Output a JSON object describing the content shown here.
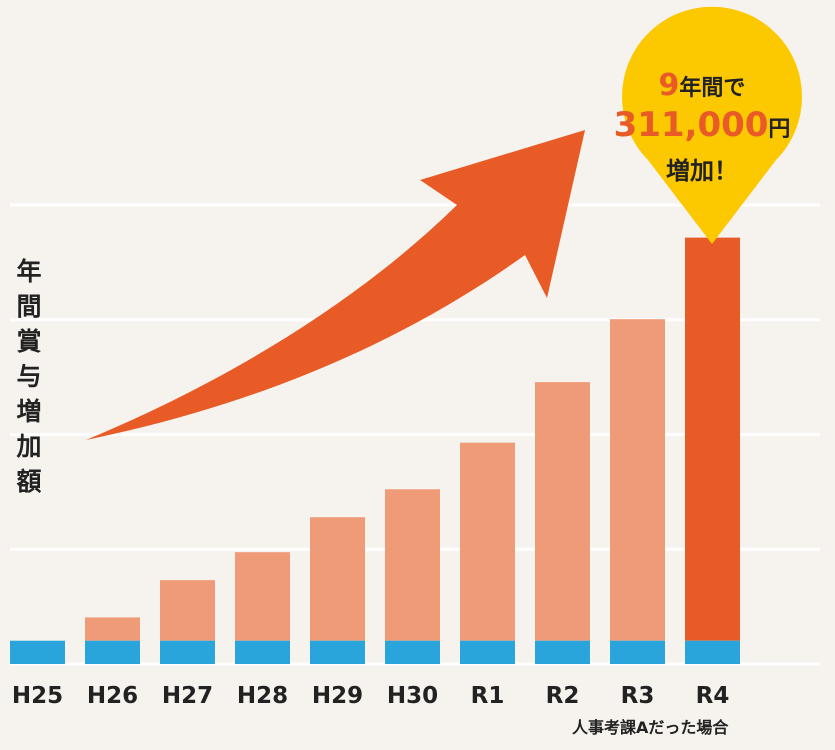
{
  "chart_data": {
    "type": "bar",
    "categories": [
      "H25",
      "H26",
      "H27",
      "H28",
      "H29",
      "H30",
      "R1",
      "R2",
      "R3",
      "R4"
    ],
    "series": [
      {
        "values": [
          1,
          1,
          1,
          1,
          1,
          1,
          1,
          1,
          1,
          1
        ]
      },
      {
        "values": [
          0,
          1,
          2.6,
          3.8,
          5.3,
          6.5,
          8.5,
          11.1,
          13.8,
          17.3
        ]
      }
    ],
    "colors": {
      "base": "#2aa5dc",
      "increase": "#ef9b78",
      "highlight": "#e85a26",
      "callout": "#fcc800",
      "grid": "#ffffff"
    },
    "ylabel": "年間賞与増加額",
    "ylim": [
      0,
      19.7
    ],
    "grid": true,
    "highlight_index": 9
  },
  "callout": {
    "years_num": "9",
    "years_suffix": "年間で",
    "amount": "311,000",
    "amount_unit": "円",
    "increase_text": "増加！"
  },
  "footnote": "人事考課Aだった場合"
}
